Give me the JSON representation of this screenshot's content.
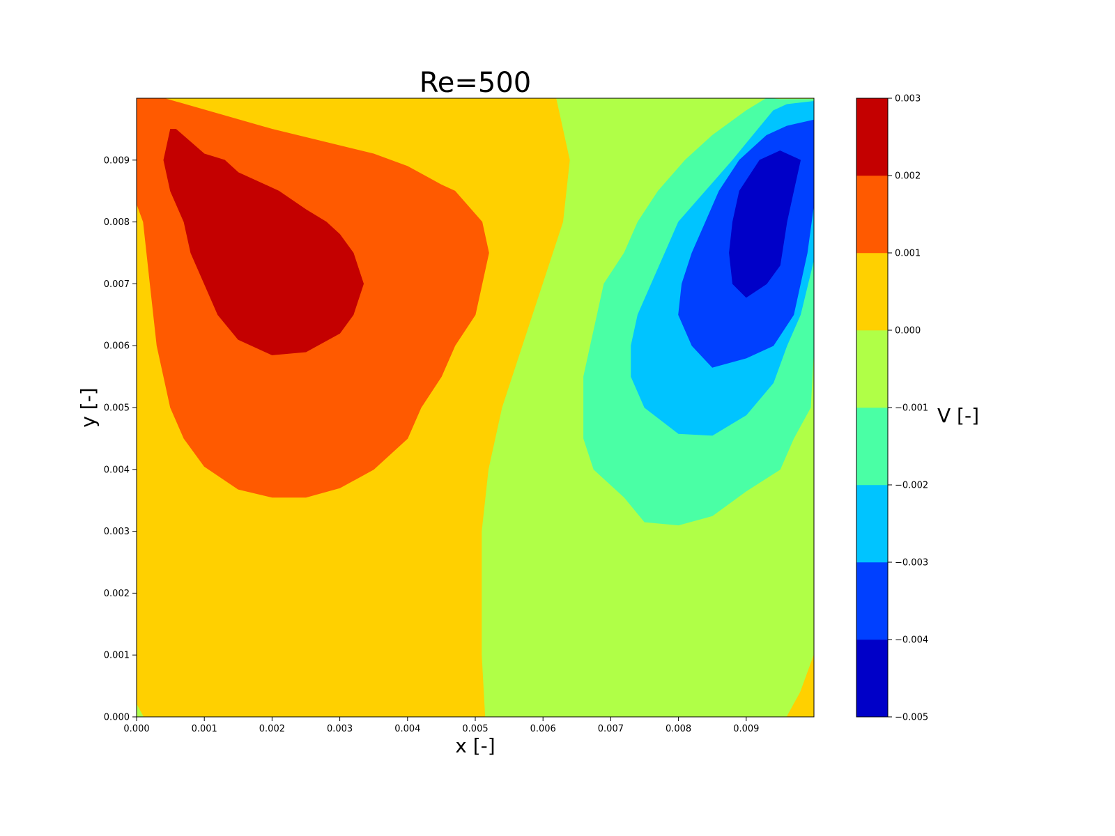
{
  "chart_data": {
    "type": "heatmap",
    "subtype": "filled-contour",
    "title": "Re=500",
    "xlabel": "x [-]",
    "ylabel": "y [-]",
    "colorbar_label": "V [-]",
    "xlim": [
      0,
      0.01
    ],
    "ylim": [
      0,
      0.01
    ],
    "x_ticks": [
      {
        "value": 0.0,
        "label": "0.000"
      },
      {
        "value": 0.001,
        "label": "0.001"
      },
      {
        "value": 0.002,
        "label": "0.002"
      },
      {
        "value": 0.003,
        "label": "0.003"
      },
      {
        "value": 0.004,
        "label": "0.004"
      },
      {
        "value": 0.005,
        "label": "0.005"
      },
      {
        "value": 0.006,
        "label": "0.006"
      },
      {
        "value": 0.007,
        "label": "0.007"
      },
      {
        "value": 0.008,
        "label": "0.008"
      },
      {
        "value": 0.009,
        "label": "0.009"
      }
    ],
    "y_ticks": [
      {
        "value": 0.0,
        "label": "0.000"
      },
      {
        "value": 0.001,
        "label": "0.001"
      },
      {
        "value": 0.002,
        "label": "0.002"
      },
      {
        "value": 0.003,
        "label": "0.003"
      },
      {
        "value": 0.004,
        "label": "0.004"
      },
      {
        "value": 0.005,
        "label": "0.005"
      },
      {
        "value": 0.006,
        "label": "0.006"
      },
      {
        "value": 0.007,
        "label": "0.007"
      },
      {
        "value": 0.008,
        "label": "0.008"
      },
      {
        "value": 0.009,
        "label": "0.009"
      }
    ],
    "colorbar_ticks": [
      {
        "value": 0.003,
        "label": "0.003"
      },
      {
        "value": 0.002,
        "label": "0.002"
      },
      {
        "value": 0.001,
        "label": "0.001"
      },
      {
        "value": 0.0,
        "label": "0.000"
      },
      {
        "value": -0.001,
        "label": "−0.001"
      },
      {
        "value": -0.002,
        "label": "−0.002"
      },
      {
        "value": -0.003,
        "label": "−0.003"
      },
      {
        "value": -0.004,
        "label": "−0.004"
      },
      {
        "value": -0.005,
        "label": "−0.005"
      }
    ],
    "levels": [
      {
        "range": [
          -0.005,
          -0.004
        ],
        "color": "#0000c8"
      },
      {
        "range": [
          -0.004,
          -0.003
        ],
        "color": "#0040ff"
      },
      {
        "range": [
          -0.003,
          -0.002
        ],
        "color": "#00c4ff"
      },
      {
        "range": [
          -0.002,
          -0.001
        ],
        "color": "#4affa5"
      },
      {
        "range": [
          -0.001,
          0.0
        ],
        "color": "#b0ff47"
      },
      {
        "range": [
          0.0,
          0.001
        ],
        "color": "#ffd000"
      },
      {
        "range": [
          0.001,
          0.002
        ],
        "color": "#ff5a00"
      },
      {
        "range": [
          0.002,
          0.003
        ],
        "color": "#c40000"
      }
    ],
    "regions": [
      {
        "level": 0.0005,
        "shape": "background",
        "points": [
          [
            0,
            0
          ],
          [
            0.01,
            0
          ],
          [
            0.01,
            0.01
          ],
          [
            0,
            0.01
          ]
        ]
      },
      {
        "level": -0.0005,
        "shape": "right-lobe",
        "points": [
          [
            0.0062,
            0.01
          ],
          [
            0.0064,
            0.009
          ],
          [
            0.0063,
            0.008
          ],
          [
            0.006,
            0.007
          ],
          [
            0.0057,
            0.006
          ],
          [
            0.0054,
            0.005
          ],
          [
            0.0052,
            0.004
          ],
          [
            0.0051,
            0.003
          ],
          [
            0.0051,
            0.002
          ],
          [
            0.0051,
            0.001
          ],
          [
            0.00515,
            0
          ],
          [
            0.0096,
            0
          ],
          [
            0.0098,
            0.0004
          ],
          [
            0.01,
            0.001
          ],
          [
            0.01,
            0.01
          ]
        ]
      },
      {
        "level": -0.0005,
        "shape": "corner-bottom-left",
        "points": [
          [
            0,
            0
          ],
          [
            0.0001,
            0
          ],
          [
            0,
            0.0002
          ]
        ]
      },
      {
        "level": 0.0015,
        "shape": "left-outer",
        "points": [
          [
            0,
            0.01
          ],
          [
            0.0004,
            0.01
          ],
          [
            0.002,
            0.0095
          ],
          [
            0.0035,
            0.0091
          ],
          [
            0.004,
            0.0089
          ],
          [
            0.0045,
            0.0086
          ],
          [
            0.0047,
            0.0085
          ],
          [
            0.0051,
            0.008
          ],
          [
            0.0052,
            0.0075
          ],
          [
            0.0051,
            0.007
          ],
          [
            0.005,
            0.0065
          ],
          [
            0.0047,
            0.006
          ],
          [
            0.0045,
            0.0055
          ],
          [
            0.0042,
            0.005
          ],
          [
            0.004,
            0.0045
          ],
          [
            0.0035,
            0.004
          ],
          [
            0.003,
            0.0037
          ],
          [
            0.0025,
            0.00355
          ],
          [
            0.002,
            0.00355
          ],
          [
            0.0015,
            0.00368
          ],
          [
            0.001,
            0.00405
          ],
          [
            0.0007,
            0.0045
          ],
          [
            0.0005,
            0.005
          ],
          [
            0.0004,
            0.0055
          ],
          [
            0.0003,
            0.006
          ],
          [
            0.0002,
            0.007
          ],
          [
            0.0001,
            0.008
          ],
          [
            0,
            0.0083
          ]
        ]
      },
      {
        "level": 0.0025,
        "shape": "left-inner",
        "points": [
          [
            0.0005,
            0.0095
          ],
          [
            0.00058,
            0.0095
          ],
          [
            0.001,
            0.0091
          ],
          [
            0.0013,
            0.009
          ],
          [
            0.0015,
            0.0088
          ],
          [
            0.0021,
            0.0085
          ],
          [
            0.0025,
            0.0082
          ],
          [
            0.0028,
            0.008
          ],
          [
            0.003,
            0.0078
          ],
          [
            0.0032,
            0.0075
          ],
          [
            0.00335,
            0.007
          ],
          [
            0.0032,
            0.0065
          ],
          [
            0.003,
            0.0062
          ],
          [
            0.0025,
            0.0059
          ],
          [
            0.002,
            0.00585
          ],
          [
            0.0015,
            0.0061
          ],
          [
            0.0012,
            0.0065
          ],
          [
            0.001,
            0.007
          ],
          [
            0.0008,
            0.0075
          ],
          [
            0.0007,
            0.008
          ],
          [
            0.0005,
            0.0085
          ],
          [
            0.0004,
            0.009
          ]
        ]
      },
      {
        "level": -0.0015,
        "shape": "right-ring1",
        "points": [
          [
            0.0093,
            0.01
          ],
          [
            0.0095,
            0.00998
          ],
          [
            0.01,
            0.00998
          ],
          [
            0.01,
            0.006
          ],
          [
            0.00995,
            0.005
          ],
          [
            0.0097,
            0.0045
          ],
          [
            0.0095,
            0.004
          ],
          [
            0.009,
            0.00365
          ],
          [
            0.0085,
            0.00325
          ],
          [
            0.008,
            0.0031
          ],
          [
            0.0075,
            0.00315
          ],
          [
            0.0072,
            0.00355
          ],
          [
            0.00675,
            0.004
          ],
          [
            0.0066,
            0.0045
          ],
          [
            0.0066,
            0.005
          ],
          [
            0.0066,
            0.0055
          ],
          [
            0.0067,
            0.006
          ],
          [
            0.0068,
            0.0065
          ],
          [
            0.0069,
            0.007
          ],
          [
            0.0072,
            0.0075
          ],
          [
            0.0074,
            0.008
          ],
          [
            0.0077,
            0.0085
          ],
          [
            0.0081,
            0.009
          ],
          [
            0.0085,
            0.0094
          ],
          [
            0.009,
            0.0098
          ]
        ]
      },
      {
        "level": -0.0025,
        "shape": "right-ring2",
        "points": [
          [
            0.0096,
            0.0099
          ],
          [
            0.01,
            0.00995
          ],
          [
            0.01,
            0.0074
          ],
          [
            0.0098,
            0.0065
          ],
          [
            0.0096,
            0.006
          ],
          [
            0.0094,
            0.0054
          ],
          [
            0.009,
            0.00488
          ],
          [
            0.0085,
            0.00455
          ],
          [
            0.008,
            0.00458
          ],
          [
            0.0075,
            0.005
          ],
          [
            0.0073,
            0.0055
          ],
          [
            0.0073,
            0.006
          ],
          [
            0.0074,
            0.0065
          ],
          [
            0.0076,
            0.007
          ],
          [
            0.0078,
            0.0075
          ],
          [
            0.008,
            0.008
          ],
          [
            0.0084,
            0.0085
          ],
          [
            0.0088,
            0.009
          ],
          [
            0.0091,
            0.0094
          ],
          [
            0.0094,
            0.0098
          ]
        ]
      },
      {
        "level": -0.0035,
        "shape": "right-ring3",
        "points": [
          [
            0.0096,
            0.00955
          ],
          [
            0.01,
            0.00965
          ],
          [
            0.01,
            0.0083
          ],
          [
            0.0099,
            0.0075
          ],
          [
            0.0097,
            0.0065
          ],
          [
            0.0094,
            0.006
          ],
          [
            0.009,
            0.0058
          ],
          [
            0.0085,
            0.00565
          ],
          [
            0.0082,
            0.006
          ],
          [
            0.008,
            0.0065
          ],
          [
            0.00805,
            0.007
          ],
          [
            0.0082,
            0.0075
          ],
          [
            0.0084,
            0.008
          ],
          [
            0.0086,
            0.0085
          ],
          [
            0.0089,
            0.009
          ],
          [
            0.0093,
            0.0094
          ]
        ]
      },
      {
        "level": -0.0045,
        "shape": "right-core",
        "points": [
          [
            0.0095,
            0.00915
          ],
          [
            0.0098,
            0.009
          ],
          [
            0.0097,
            0.0085
          ],
          [
            0.0096,
            0.008
          ],
          [
            0.0095,
            0.0073
          ],
          [
            0.0093,
            0.007
          ],
          [
            0.009,
            0.00678
          ],
          [
            0.0088,
            0.007
          ],
          [
            0.00875,
            0.0075
          ],
          [
            0.0088,
            0.008
          ],
          [
            0.0089,
            0.0085
          ],
          [
            0.0092,
            0.009
          ]
        ]
      },
      {
        "level": 0.0005,
        "shape": "corner-bottom-right",
        "points": [
          [
            0.0096,
            0
          ],
          [
            0.01,
            0
          ],
          [
            0.01,
            0.001
          ],
          [
            0.0098,
            0.0004
          ]
        ]
      }
    ]
  }
}
